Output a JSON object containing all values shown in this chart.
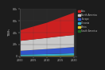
{
  "years": [
    2000,
    2005,
    2010,
    2015,
    2020
  ],
  "series": {
    "Asia": [
      18000,
      22000,
      26000,
      32000,
      38000
    ],
    "North America": [
      17000,
      18000,
      19000,
      20000,
      20500
    ],
    "Europe": [
      6500,
      7500,
      8500,
      9500,
      10500
    ],
    "Oceania": [
      2500,
      2800,
      3000,
      3200,
      3500
    ],
    "Africa": [
      400,
      500,
      700,
      900,
      1200
    ],
    "South America": [
      300,
      400,
      500,
      700,
      900
    ]
  },
  "colors": {
    "Asia": "#cc2020",
    "North America": "#c8c8c8",
    "Europe": "#3355cc",
    "Oceania": "#33aacc",
    "Africa": "#ddcc22",
    "South America": "#226622"
  },
  "order": [
    "South America",
    "Africa",
    "Oceania",
    "Europe",
    "North America",
    "Asia"
  ],
  "legend_order": [
    "Asia",
    "North America",
    "Europe",
    "Oceania",
    "Africa",
    "South America"
  ],
  "ylabel": "TWh",
  "yticks": [
    0,
    20000,
    40000,
    60000,
    80000
  ],
  "ytick_labels": [
    "0",
    "20k",
    "40k",
    "60k",
    "80k"
  ],
  "xticks": [
    2000,
    2005,
    2010,
    2015,
    2020
  ],
  "xtick_labels": [
    "2000",
    "2005",
    "2010",
    "2015",
    "2020"
  ],
  "ylim": [
    0,
    80000
  ],
  "xlim": [
    2000,
    2021
  ],
  "background_color": "#1c1c1c",
  "axes_background": "#282828",
  "text_color": "#bbbbbb",
  "grid_color": "#404040"
}
